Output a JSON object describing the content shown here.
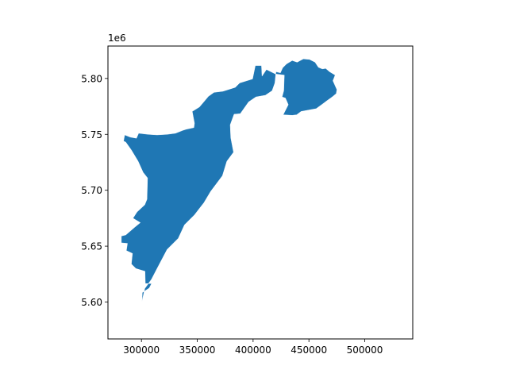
{
  "chart_data": {
    "type": "map",
    "title": "",
    "xlabel": "",
    "ylabel": "",
    "xlim": [
      270000,
      543000
    ],
    "ylim": [
      5567000,
      5829000
    ],
    "y_offset_label": "1e6",
    "x_ticks": [
      {
        "value": 300000,
        "label": "300000"
      },
      {
        "value": 350000,
        "label": "350000"
      },
      {
        "value": 400000,
        "label": "400000"
      },
      {
        "value": 450000,
        "label": "450000"
      },
      {
        "value": 500000,
        "label": "500000"
      }
    ],
    "y_ticks": [
      {
        "value": 5600000,
        "label": "5.60"
      },
      {
        "value": 5650000,
        "label": "5.65"
      },
      {
        "value": 5700000,
        "label": "5.70"
      },
      {
        "value": 5750000,
        "label": "5.75"
      },
      {
        "value": 5800000,
        "label": "5.80"
      }
    ],
    "fill_color": "#1f77b4",
    "edge_color": "#ffffff",
    "regions": [
      {
        "polygon": [
          [
            300500,
            5600500
          ],
          [
            300800,
            5608500
          ],
          [
            307000,
            5612500
          ],
          [
            309000,
            5616500
          ],
          [
            303500,
            5616500
          ],
          [
            303200,
            5627500
          ],
          [
            295000,
            5630000
          ],
          [
            291000,
            5634000
          ],
          [
            292000,
            5643500
          ],
          [
            286500,
            5646000
          ],
          [
            287500,
            5652500
          ],
          [
            282000,
            5653000
          ],
          [
            282000,
            5659000
          ],
          [
            286000,
            5660000
          ],
          [
            294000,
            5667000
          ],
          [
            299000,
            5671000
          ],
          [
            292500,
            5675000
          ],
          [
            296000,
            5680500
          ],
          [
            303000,
            5687000
          ],
          [
            305000,
            5692000
          ],
          [
            305500,
            5711000
          ],
          [
            301500,
            5716000
          ],
          [
            297000,
            5726000
          ],
          [
            291000,
            5736000
          ],
          [
            286000,
            5743000
          ],
          [
            284000,
            5744000
          ],
          [
            285000,
            5749500
          ],
          [
            290000,
            5747500
          ],
          [
            295500,
            5746500
          ],
          [
            297500,
            5751000
          ],
          [
            306000,
            5750000
          ],
          [
            314000,
            5749500
          ],
          [
            323000,
            5750000
          ],
          [
            330500,
            5751000
          ],
          [
            337000,
            5753500
          ],
          [
            340000,
            5754500
          ],
          [
            347000,
            5756000
          ],
          [
            347500,
            5760000
          ],
          [
            345500,
            5770500
          ],
          [
            352000,
            5774500
          ],
          [
            360000,
            5784000
          ],
          [
            365000,
            5787500
          ],
          [
            373000,
            5788500
          ],
          [
            384000,
            5792000
          ],
          [
            388000,
            5796000
          ],
          [
            399500,
            5799500
          ],
          [
            402000,
            5811500
          ],
          [
            407500,
            5811500
          ],
          [
            408000,
            5802000
          ],
          [
            412000,
            5808000
          ],
          [
            420000,
            5804000
          ],
          [
            428000,
            5803000
          ],
          [
            427500,
            5789000
          ],
          [
            426000,
            5783500
          ],
          [
            429000,
            5782500
          ],
          [
            431500,
            5776500
          ],
          [
            427000,
            5767500
          ],
          [
            435000,
            5767000
          ],
          [
            439000,
            5767500
          ],
          [
            443000,
            5770500
          ],
          [
            445500,
            5771000
          ],
          [
            451000,
            5772000
          ],
          [
            456500,
            5773000
          ],
          [
            462000,
            5777000
          ],
          [
            466000,
            5780000
          ],
          [
            469500,
            5782500
          ],
          [
            471500,
            5784000
          ],
          [
            474500,
            5786500
          ],
          [
            475000,
            5790000
          ],
          [
            471500,
            5798000
          ],
          [
            473500,
            5803000
          ],
          [
            468500,
            5806000
          ],
          [
            465000,
            5809000
          ],
          [
            462000,
            5808500
          ],
          [
            458500,
            5810000
          ],
          [
            455500,
            5814500
          ],
          [
            450500,
            5817000
          ],
          [
            445000,
            5817500
          ],
          [
            439500,
            5814500
          ],
          [
            435000,
            5816000
          ],
          [
            430000,
            5813000
          ],
          [
            426500,
            5809500
          ],
          [
            424500,
            5805000
          ],
          [
            420500,
            5806000
          ],
          [
            419500,
            5796000
          ],
          [
            417000,
            5789000
          ],
          [
            411000,
            5785000
          ],
          [
            402500,
            5783500
          ],
          [
            396000,
            5779000
          ],
          [
            388500,
            5768500
          ],
          [
            383000,
            5768000
          ],
          [
            379500,
            5758500
          ],
          [
            380000,
            5747000
          ],
          [
            382500,
            5734000
          ],
          [
            376500,
            5726000
          ],
          [
            372500,
            5713000
          ],
          [
            362000,
            5699000
          ],
          [
            356000,
            5689000
          ],
          [
            347500,
            5678000
          ],
          [
            338500,
            5669000
          ],
          [
            333000,
            5657000
          ],
          [
            323000,
            5647000
          ],
          [
            314500,
            5631000
          ],
          [
            309000,
            5620500
          ],
          [
            303000,
            5612000
          ]
        ]
      }
    ]
  }
}
